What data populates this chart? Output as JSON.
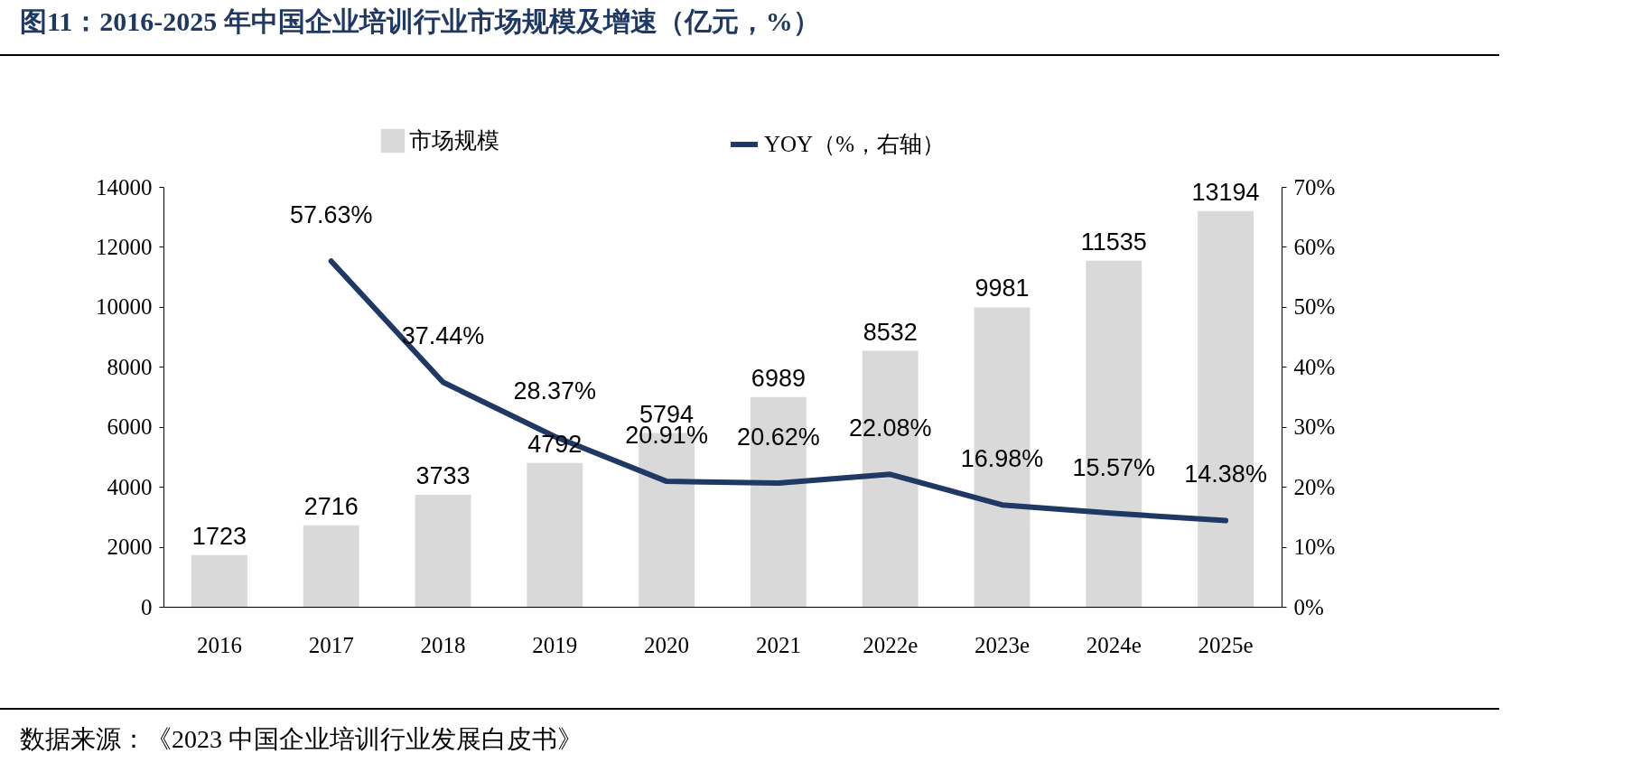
{
  "chart_data": {
    "type": "bar",
    "title": "图11：2016-2025 年中国企业培训行业市场规模及增速（亿元，%）",
    "categories": [
      "2016",
      "2017",
      "2018",
      "2019",
      "2020",
      "2021",
      "2022e",
      "2023e",
      "2024e",
      "2025e"
    ],
    "series": [
      {
        "name": "市场规模",
        "color": "#d9d9d9",
        "values": [
          1723,
          2716,
          3733,
          4792,
          5794,
          6989,
          8532,
          9981,
          11535,
          13194
        ],
        "value_labels": [
          "1723",
          "2716",
          "3733",
          "4792",
          "5794",
          "6989",
          "8532",
          "9981",
          "11535",
          "13194"
        ]
      },
      {
        "name": "YOY（%，右轴）",
        "type": "line",
        "axis": "y2",
        "color": "#1f3864",
        "values": [
          null,
          57.63,
          37.44,
          28.37,
          20.91,
          20.62,
          22.08,
          16.98,
          15.57,
          14.38
        ],
        "value_labels": [
          null,
          "57.63%",
          "37.44%",
          "28.37%",
          "20.91%",
          "20.62%",
          "22.08%",
          "16.98%",
          "15.57%",
          "14.38%"
        ]
      }
    ],
    "ylim": [
      0,
      14000
    ],
    "yticks": [
      0,
      2000,
      4000,
      6000,
      8000,
      10000,
      12000,
      14000
    ],
    "y2lim": [
      0,
      70
    ],
    "y2ticks": [
      {
        "value": 0,
        "label": "0%"
      },
      {
        "value": 10,
        "label": "10%"
      },
      {
        "value": 20,
        "label": "20%"
      },
      {
        "value": 30,
        "label": "30%"
      },
      {
        "value": 40,
        "label": "40%"
      },
      {
        "value": 50,
        "label": "50%"
      },
      {
        "value": 60,
        "label": "60%"
      },
      {
        "value": 70,
        "label": "70%"
      }
    ],
    "legend": "top",
    "annotations": [
      "数据来源：《2023 中国企业培训行业发展白皮书》"
    ]
  }
}
